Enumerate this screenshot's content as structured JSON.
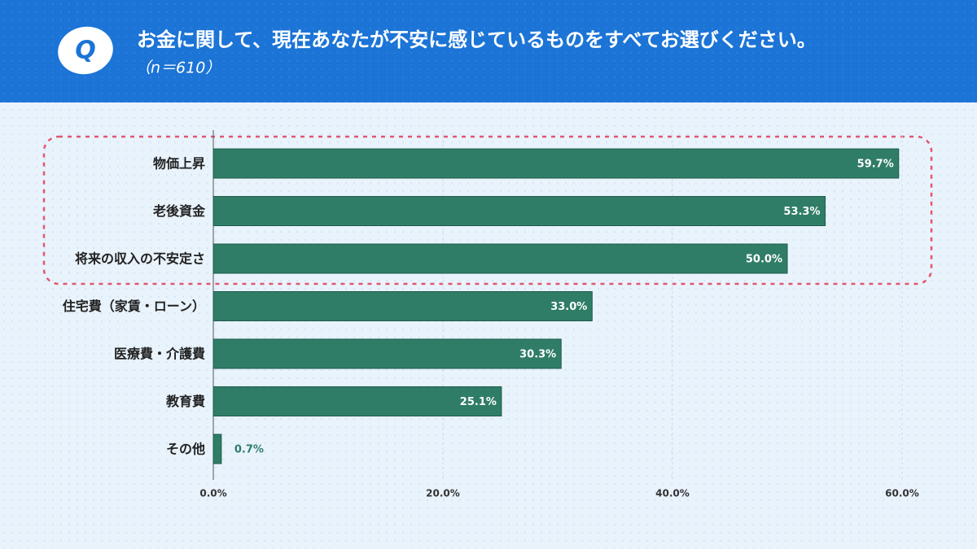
{
  "chart_data": {
    "type": "bar",
    "orientation": "horizontal",
    "badge": "Q",
    "title": "お金に関して、現在あなたが不安に感じているものをすべてお選びください。",
    "subtitle": "（n＝610）",
    "categories": [
      "物価上昇",
      "老後資金",
      "将来の収入の不安定さ",
      "住宅費（家賃・ローン）",
      "医療費・介護費",
      "教育費",
      "その他"
    ],
    "values": [
      59.7,
      53.3,
      50.0,
      33.0,
      30.3,
      25.1,
      0.7
    ],
    "value_labels": [
      "59.7%",
      "53.3%",
      "50.0%",
      "33.0%",
      "30.3%",
      "25.1%",
      "0.7%"
    ],
    "color": "#2f7d67",
    "xlim": [
      0,
      60
    ],
    "xticks": [
      {
        "value": 0,
        "label": "0.0%"
      },
      {
        "value": 20,
        "label": "20.0%"
      },
      {
        "value": 40,
        "label": "40.0%"
      },
      {
        "value": 60,
        "label": "60.0%"
      }
    ],
    "grid": true
  }
}
